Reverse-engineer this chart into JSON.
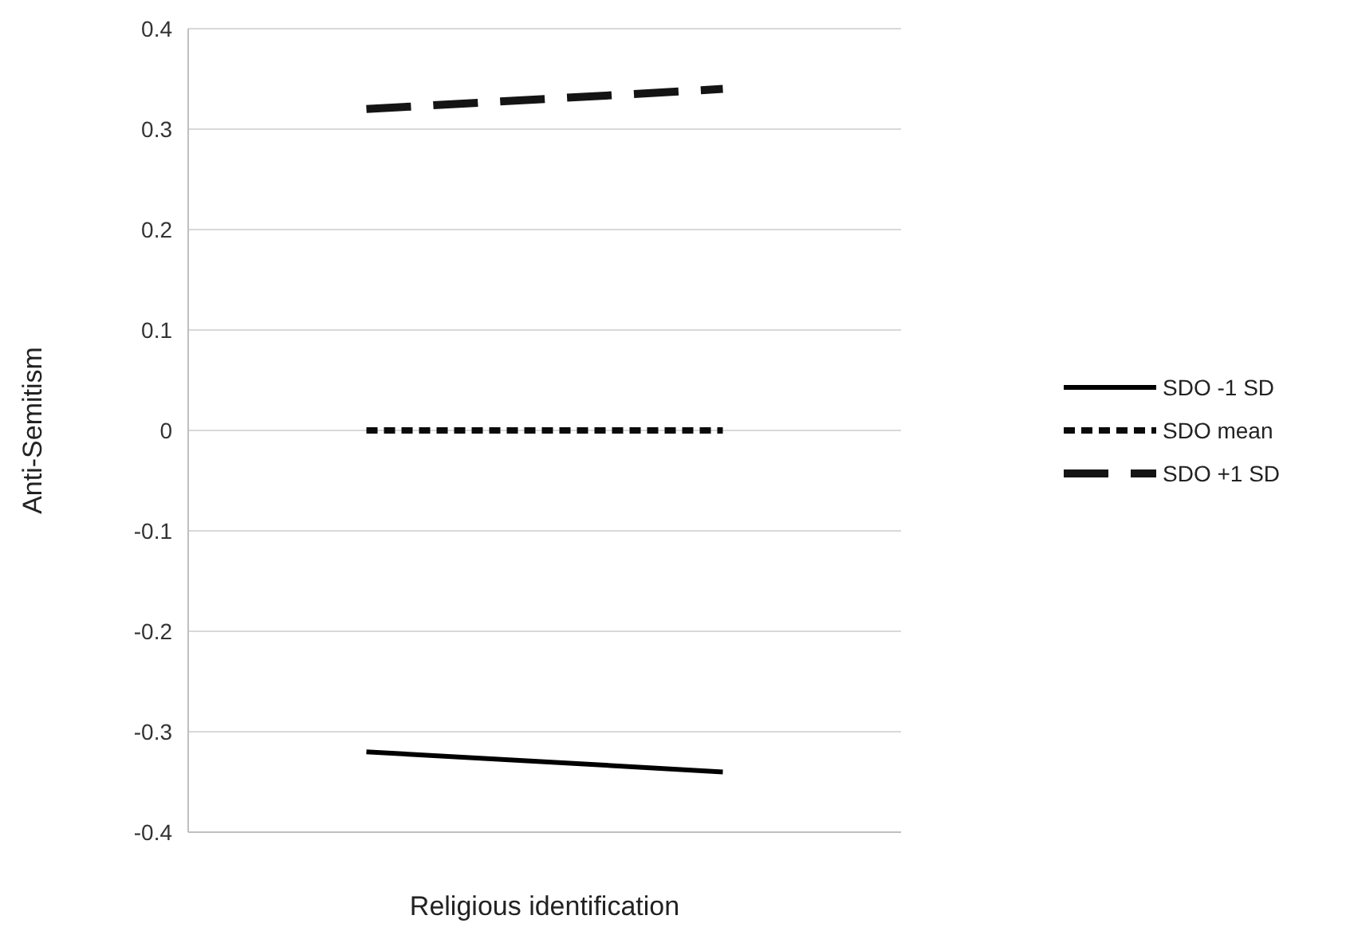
{
  "chart_data": {
    "type": "line",
    "xlabel": "Religious identification",
    "ylabel": "Anti-Semitism",
    "categories": [
      null,
      null
    ],
    "series": [
      {
        "name": "SDO -1 SD",
        "color": "#000000",
        "values": [
          -0.32,
          -0.34
        ],
        "line_style": "solid"
      },
      {
        "name": "SDO mean",
        "color": "#0a0a0a",
        "values": [
          0,
          0
        ],
        "line_style": "dotted"
      },
      {
        "name": "SDO +1 SD",
        "color": "#141414",
        "values": [
          0.32,
          0.34
        ],
        "line_style": "dashed"
      }
    ],
    "ylim": [
      -0.4,
      0.4
    ],
    "yticks": [
      -0.4,
      -0.3,
      -0.2,
      -0.1,
      0,
      0.1,
      0.2,
      0.3,
      0.4
    ],
    "grid": "y",
    "legend": "right",
    "marker": "none"
  }
}
